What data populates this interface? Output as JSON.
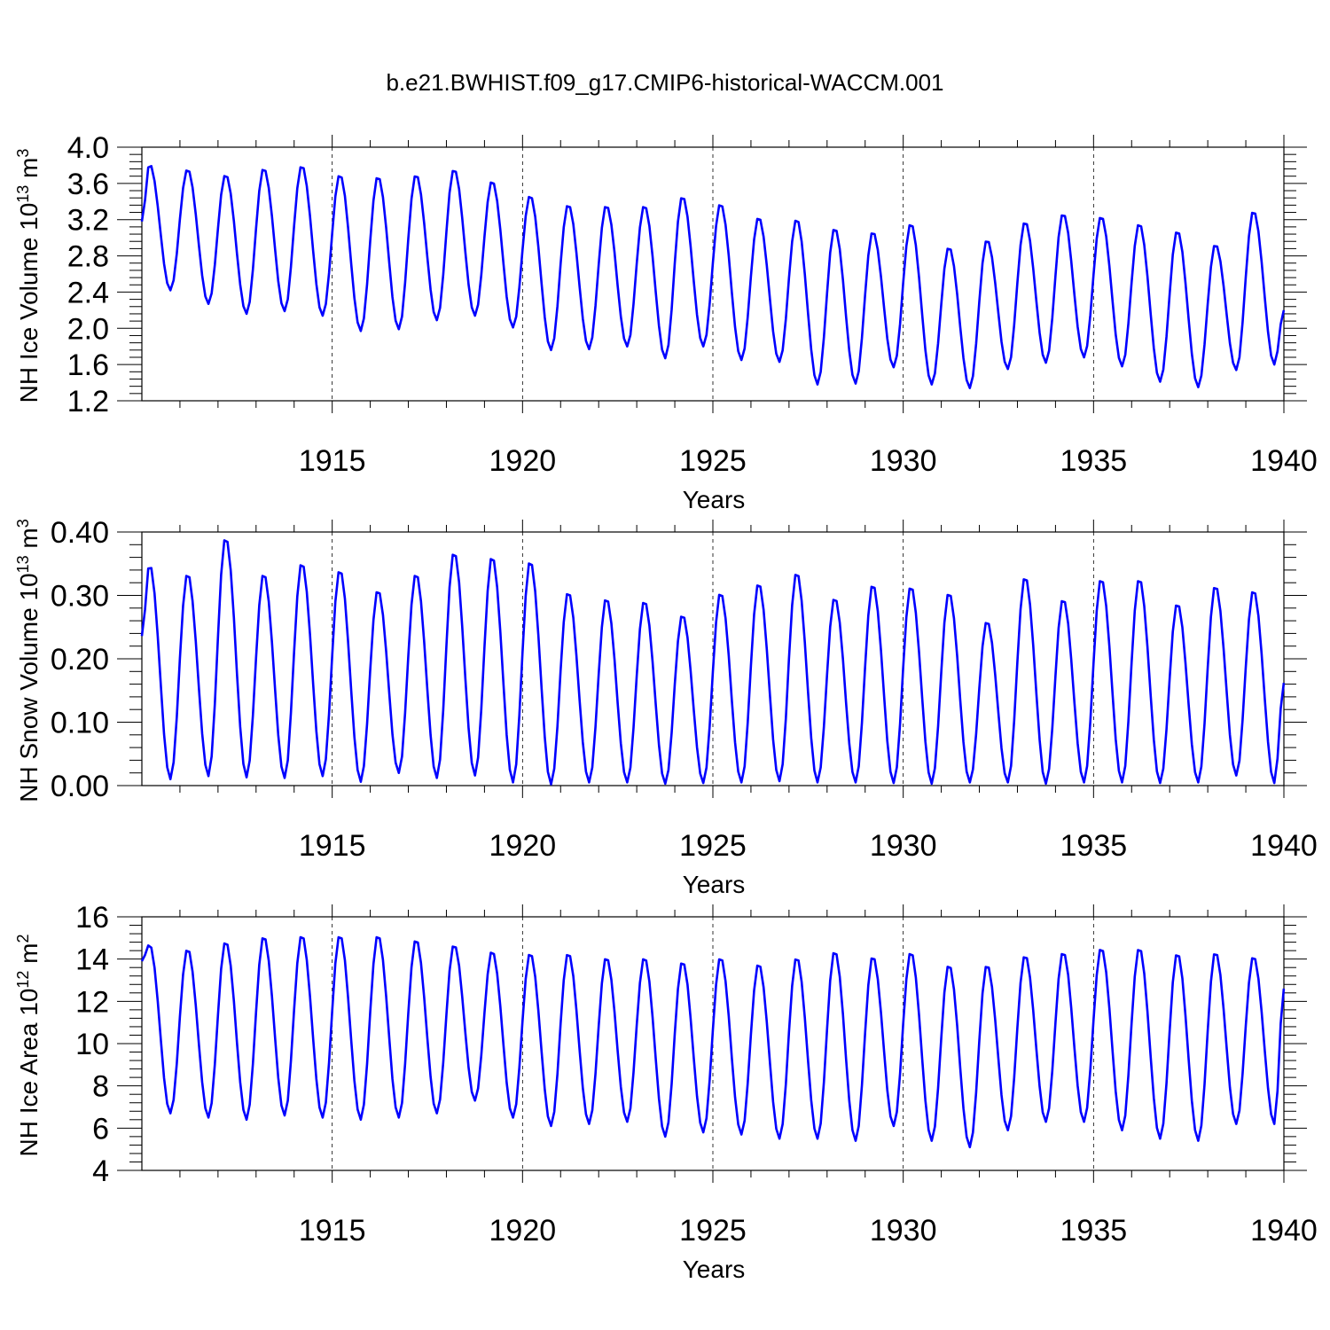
{
  "title": "b.e21.BWHIST.f09_g17.CMIP6-historical-WACCM.001",
  "chart_data": [
    {
      "type": "line",
      "ylabel": "NH Ice Volume 10",
      "ylabel_exp": "13",
      "ylabel_unit": " m",
      "ylabel_unit_exp": "3",
      "xlabel": "Years",
      "xlim": [
        1910.0,
        1940.0
      ],
      "ylim": [
        1.2,
        4.0
      ],
      "y_ticks": [
        "1.2",
        "1.6",
        "2.0",
        "2.4",
        "2.8",
        "3.2",
        "3.6",
        "4.0"
      ],
      "x_ticks": [
        "1915",
        "1920",
        "1925",
        "1930",
        "1935",
        "1940"
      ],
      "series": [
        {
          "name": "NH Ice Volume",
          "color": "#0000ff",
          "start": 1910.0,
          "step": 0.08333,
          "annual_max": [
            3.82,
            3.76,
            3.7,
            3.77,
            3.8,
            3.7,
            3.68,
            3.7,
            3.76,
            3.63,
            3.47,
            3.37,
            3.36,
            3.36,
            3.46,
            3.38,
            3.23,
            3.21,
            3.11,
            3.07,
            3.16,
            2.9,
            2.98,
            3.18,
            3.27,
            3.24,
            3.16,
            3.08,
            2.93,
            3.3
          ],
          "annual_min": [
            2.42,
            2.27,
            2.16,
            2.19,
            2.14,
            1.97,
            1.99,
            2.09,
            2.14,
            2.01,
            1.76,
            1.77,
            1.8,
            1.67,
            1.8,
            1.65,
            1.63,
            1.38,
            1.39,
            1.57,
            1.38,
            1.34,
            1.55,
            1.62,
            1.68,
            1.58,
            1.41,
            1.35,
            1.54,
            1.6
          ],
          "start_value": 3.18,
          "end_value": 2.2
        }
      ]
    },
    {
      "type": "line",
      "ylabel": "NH Snow Volume 10",
      "ylabel_exp": "13",
      "ylabel_unit": " m",
      "ylabel_unit_exp": "3",
      "xlabel": "Years",
      "xlim": [
        1910.0,
        1940.0
      ],
      "ylim": [
        0.0,
        0.4
      ],
      "y_ticks": [
        "0.00",
        "0.10",
        "0.20",
        "0.30",
        "0.40"
      ],
      "x_ticks": [
        "1915",
        "1920",
        "1925",
        "1930",
        "1935",
        "1940"
      ],
      "series": [
        {
          "name": "NH Snow Volume",
          "color": "#0000ff",
          "start": 1910.0,
          "step": 0.08333,
          "annual_max": [
            0.35,
            0.335,
            0.392,
            0.335,
            0.352,
            0.341,
            0.309,
            0.335,
            0.369,
            0.362,
            0.355,
            0.306,
            0.296,
            0.292,
            0.27,
            0.305,
            0.32,
            0.337,
            0.297,
            0.318,
            0.315,
            0.305,
            0.26,
            0.33,
            0.295,
            0.327,
            0.327,
            0.288,
            0.316,
            0.309
          ],
          "annual_min": [
            0.01,
            0.015,
            0.013,
            0.012,
            0.015,
            0.006,
            0.02,
            0.012,
            0.016,
            0.005,
            0.002,
            0.005,
            0.005,
            0.003,
            0.004,
            0.005,
            0.007,
            0.005,
            0.005,
            0.004,
            0.003,
            0.005,
            0.005,
            0.003,
            0.005,
            0.005,
            0.004,
            0.005,
            0.016,
            0.004
          ],
          "start_value": 0.236,
          "end_value": 0.162
        }
      ]
    },
    {
      "type": "line",
      "ylabel": "NH Ice Area 10",
      "ylabel_exp": "12",
      "ylabel_unit": " m",
      "ylabel_unit_exp": "2",
      "xlabel": "Years",
      "xlim": [
        1910.0,
        1940.0
      ],
      "ylim": [
        4,
        16
      ],
      "y_ticks": [
        "4",
        "6",
        "8",
        "10",
        "12",
        "14",
        "16"
      ],
      "x_ticks": [
        "1915",
        "1920",
        "1925",
        "1930",
        "1935",
        "1940"
      ],
      "series": [
        {
          "name": "NH Ice Area",
          "color": "#0000ff",
          "start": 1910.0,
          "step": 0.08333,
          "annual_max": [
            14.7,
            14.5,
            14.85,
            15.1,
            15.15,
            15.15,
            15.15,
            14.95,
            14.7,
            14.4,
            14.3,
            14.3,
            14.1,
            14.1,
            13.9,
            14.1,
            13.8,
            14.1,
            14.4,
            14.15,
            14.35,
            13.75,
            13.75,
            14.2,
            14.35,
            14.55,
            14.55,
            14.3,
            14.35,
            14.15
          ],
          "annual_min": [
            6.7,
            6.5,
            6.4,
            6.6,
            6.5,
            6.4,
            6.5,
            6.7,
            7.3,
            6.5,
            6.1,
            6.2,
            6.3,
            5.6,
            5.8,
            5.7,
            5.5,
            5.5,
            5.4,
            6.1,
            5.4,
            5.1,
            5.9,
            6.3,
            6.3,
            5.9,
            5.5,
            5.4,
            6.2,
            6.2
          ],
          "start_value": 13.9,
          "end_value": 12.6
        }
      ]
    }
  ]
}
